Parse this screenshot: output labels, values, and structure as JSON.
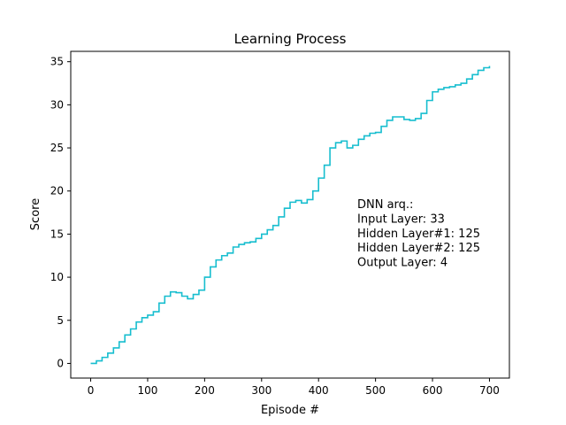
{
  "chart_data": {
    "type": "line",
    "title": "Learning Process",
    "xlabel": "Episode #",
    "ylabel": "Score",
    "xlim": [
      -35,
      735
    ],
    "ylim": [
      -1.7,
      36.2
    ],
    "xticks": [
      0,
      100,
      200,
      300,
      400,
      500,
      600,
      700
    ],
    "yticks": [
      0,
      5,
      10,
      15,
      20,
      25,
      30,
      35
    ],
    "grid": false,
    "line_color": "#17becf",
    "annotation": [
      "DNN arq.:",
      "Input Layer: 33",
      "Hidden Layer#1: 125",
      "Hidden Layer#2: 125",
      "Output Layer: 4"
    ],
    "series": [
      {
        "step": true,
        "x": [
          0,
          10,
          20,
          30,
          40,
          50,
          60,
          70,
          80,
          90,
          100,
          110,
          120,
          130,
          140,
          150,
          160,
          170,
          180,
          190,
          200,
          210,
          220,
          230,
          240,
          250,
          260,
          270,
          280,
          290,
          300,
          310,
          320,
          330,
          340,
          350,
          360,
          370,
          380,
          390,
          400,
          410,
          420,
          430,
          440,
          450,
          460,
          470,
          480,
          490,
          500,
          510,
          520,
          530,
          540,
          550,
          560,
          570,
          580,
          590,
          600,
          610,
          620,
          630,
          640,
          650,
          660,
          670,
          680,
          690,
          700
        ],
        "y": [
          0.0,
          0.3,
          0.7,
          1.2,
          1.8,
          2.5,
          3.3,
          4.0,
          4.8,
          5.3,
          5.6,
          6.0,
          7.0,
          7.8,
          8.3,
          8.2,
          7.8,
          7.5,
          8.0,
          8.5,
          10.0,
          11.2,
          12.0,
          12.5,
          12.8,
          13.5,
          13.8,
          14.0,
          14.1,
          14.5,
          15.0,
          15.5,
          16.0,
          17.0,
          18.0,
          18.7,
          18.9,
          18.6,
          19.0,
          20.0,
          21.5,
          23.0,
          25.0,
          25.6,
          25.8,
          25.0,
          25.3,
          26.0,
          26.4,
          26.7,
          26.8,
          27.5,
          28.2,
          28.6,
          28.6,
          28.3,
          28.2,
          28.4,
          29.0,
          30.5,
          31.5,
          31.8,
          32.0,
          32.1,
          32.3,
          32.5,
          33.0,
          33.5,
          34.0,
          34.3,
          34.5
        ]
      }
    ]
  }
}
